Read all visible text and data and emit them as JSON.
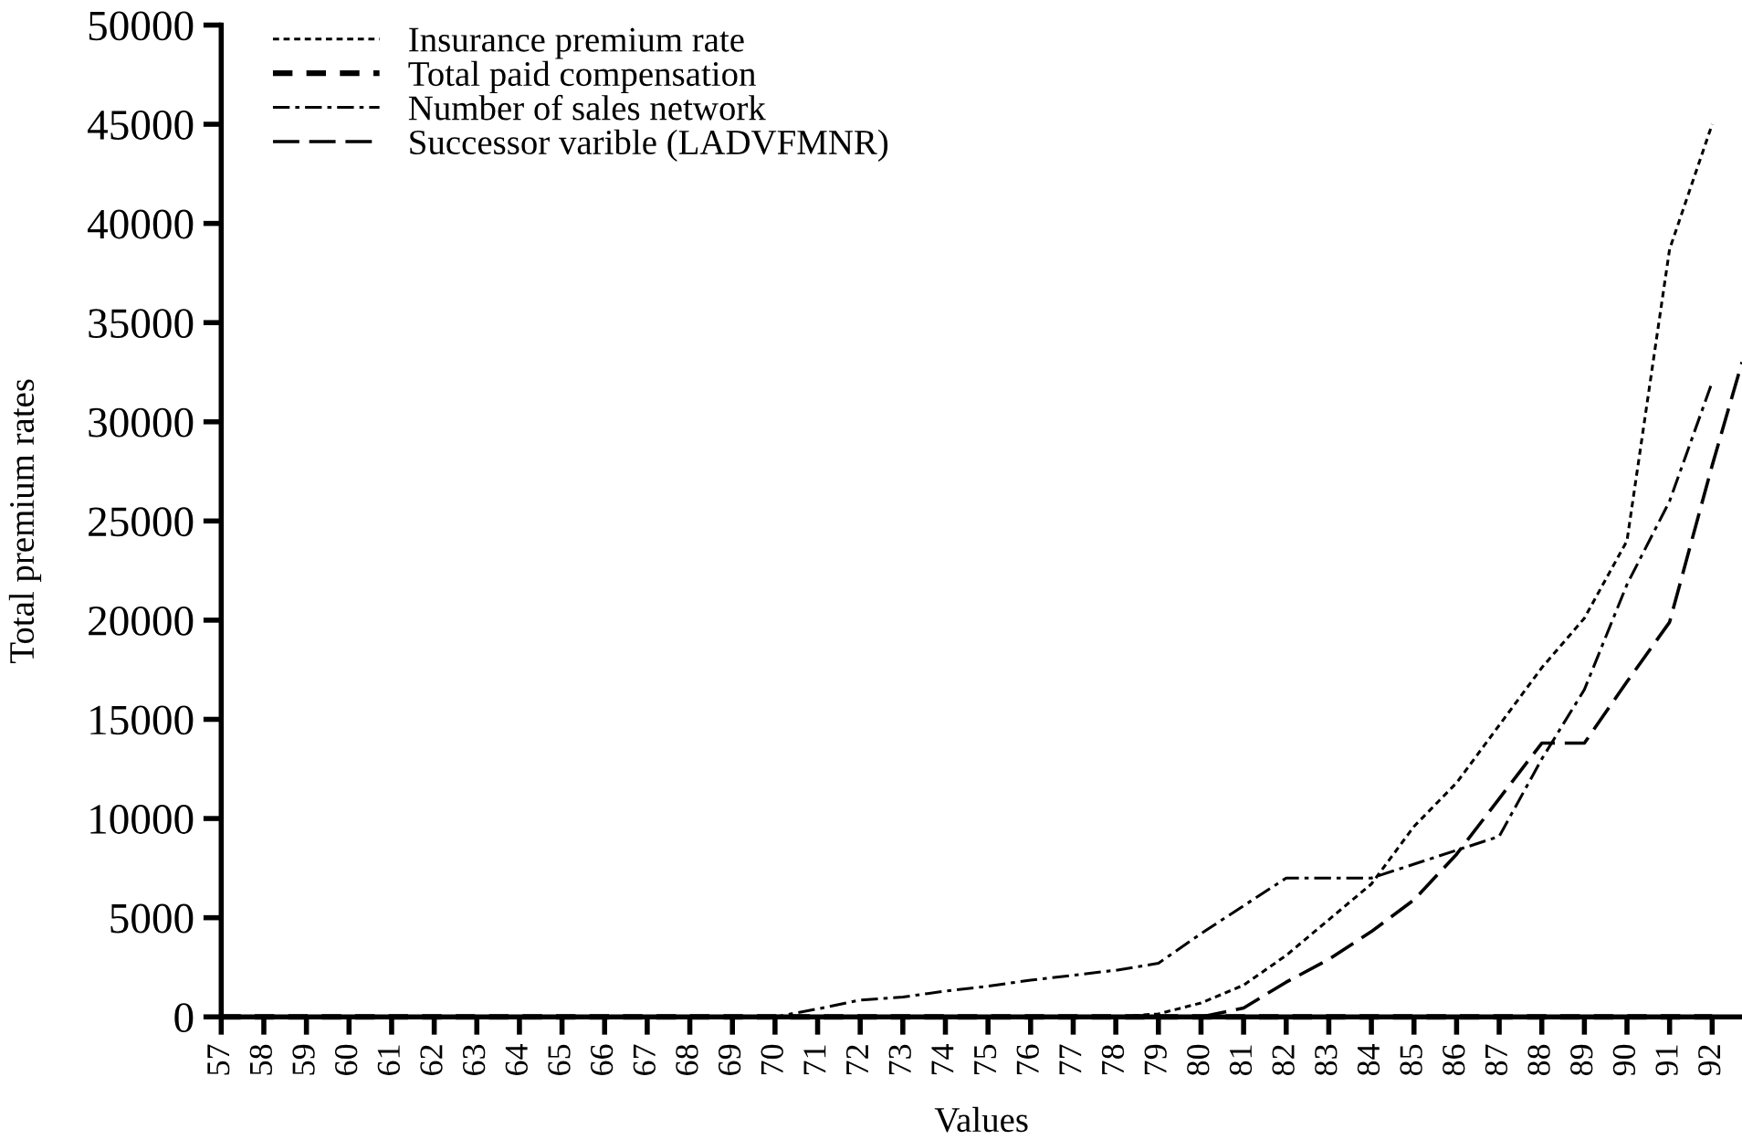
{
  "chart_data": {
    "type": "line",
    "xlabel": "Values",
    "ylabel": "Total premium rates",
    "x": [
      57,
      58,
      59,
      60,
      61,
      62,
      63,
      64,
      65,
      66,
      67,
      68,
      69,
      70,
      71,
      72,
      73,
      74,
      75,
      76,
      77,
      78,
      79,
      80,
      81,
      82,
      83,
      84,
      85,
      86,
      87,
      88,
      89,
      90,
      91,
      92
    ],
    "xlim": [
      57,
      92.7
    ],
    "xticks": [
      57,
      58,
      59,
      60,
      61,
      62,
      63,
      64,
      65,
      66,
      67,
      68,
      69,
      70,
      71,
      72,
      73,
      74,
      75,
      76,
      77,
      78,
      79,
      80,
      81,
      82,
      83,
      84,
      85,
      86,
      87,
      88,
      89,
      90,
      91,
      92
    ],
    "ylim": [
      0,
      50000
    ],
    "yticks": [
      0,
      5000,
      10000,
      15000,
      20000,
      25000,
      30000,
      35000,
      40000,
      45000,
      50000
    ],
    "grid": false,
    "legend": "top left",
    "marker": "none",
    "series": [
      {
        "name": "Insurance premium rate",
        "color": "#000000",
        "line_style": "dotted",
        "values": [
          0,
          0,
          0,
          0,
          0,
          0,
          0,
          0,
          0,
          0,
          0,
          0,
          0,
          0,
          0,
          0,
          0,
          0,
          0,
          0,
          0,
          0,
          150,
          700,
          1600,
          3100,
          4900,
          6700,
          9600,
          11800,
          14700,
          17600,
          20100,
          24000,
          38700,
          45000
        ]
      },
      {
        "name": "Total paid compensation",
        "color": "#000000",
        "line_style": "dashed",
        "values": [
          0,
          0,
          0,
          0,
          0,
          0,
          0,
          0,
          0,
          0,
          0,
          0,
          0,
          0,
          0,
          0,
          0,
          0,
          0,
          0,
          0,
          0,
          0,
          0,
          0,
          0,
          0,
          0,
          0,
          0,
          0,
          0,
          0,
          0,
          0,
          0
        ]
      },
      {
        "name": "Number of sales network",
        "color": "#000000",
        "line_style": "dashdot",
        "values": [
          0,
          0,
          0,
          0,
          0,
          0,
          0,
          0,
          0,
          0,
          0,
          0,
          0,
          0,
          400,
          850,
          1000,
          1300,
          1550,
          1850,
          2100,
          2350,
          2700,
          4200,
          5600,
          7000,
          7000,
          7000,
          7700,
          8400,
          9100,
          13000,
          16500,
          21800,
          26000,
          32000
        ]
      },
      {
        "name": "Successor varible (LADVFMNR)",
        "color": "#000000",
        "line_style": "longdash",
        "x": [
          57,
          58,
          59,
          60,
          61,
          62,
          63,
          64,
          65,
          66,
          67,
          68,
          69,
          70,
          71,
          72,
          73,
          74,
          75,
          76,
          77,
          78,
          79,
          80,
          81,
          82,
          83,
          84,
          85,
          86,
          87,
          88,
          89,
          90,
          91,
          92,
          92.7
        ],
        "values": [
          0,
          0,
          0,
          0,
          0,
          0,
          0,
          0,
          0,
          0,
          0,
          0,
          0,
          0,
          0,
          0,
          0,
          0,
          0,
          0,
          0,
          0,
          0,
          0,
          450,
          1750,
          2900,
          4300,
          5900,
          8200,
          11000,
          13800,
          13800,
          16900,
          19900,
          27800,
          33000
        ]
      }
    ]
  }
}
